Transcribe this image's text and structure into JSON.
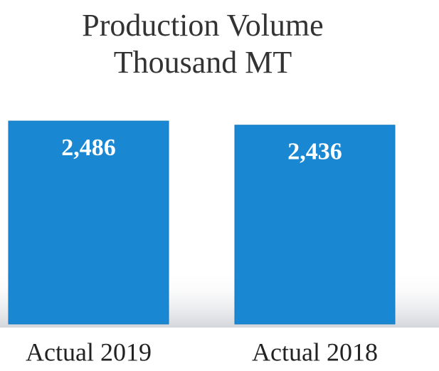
{
  "chart_data": {
    "type": "bar",
    "title": "Production Volume",
    "subtitle": "Thousand MT",
    "categories": [
      "Actual 2019",
      "Actual 2018"
    ],
    "values": [
      2486,
      2436
    ],
    "value_labels": [
      "2,486",
      "2,436"
    ],
    "color": "#1a87d2"
  }
}
